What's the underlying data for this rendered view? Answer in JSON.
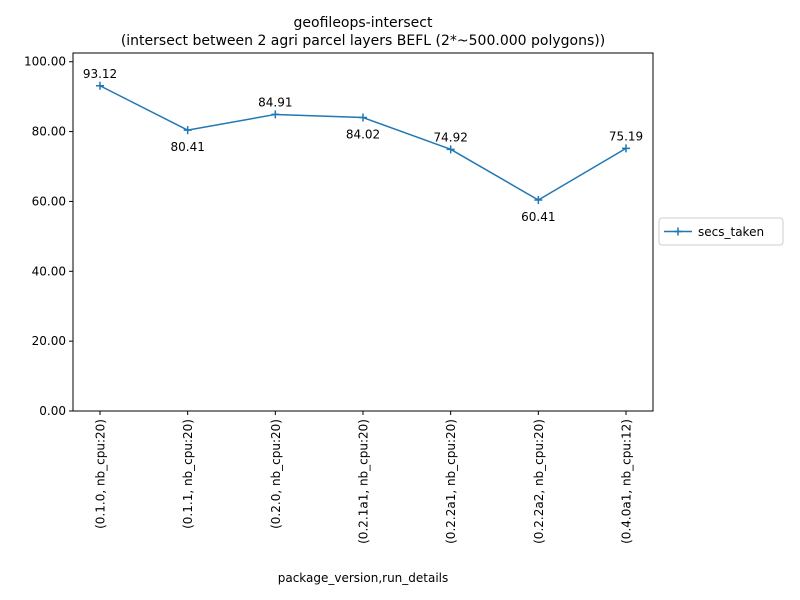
{
  "chart_data": {
    "type": "line",
    "title": "geofileops-intersect",
    "subtitle": "(intersect between 2 agri parcel layers BEFL (2*~500.000 polygons))",
    "xlabel": "package_version,run_details",
    "ylabel": "",
    "categories": [
      "(0.1.0, nb_cpu:20)",
      "(0.1.1, nb_cpu:20)",
      "(0.2.0, nb_cpu:20)",
      "(0.2.1a1, nb_cpu:20)",
      "(0.2.2a1, nb_cpu:20)",
      "(0.2.2a2, nb_cpu:20)",
      "(0.4.0a1, nb_cpu:12)"
    ],
    "series": [
      {
        "name": "secs_taken",
        "values": [
          93.12,
          80.41,
          84.91,
          84.02,
          74.92,
          60.41,
          75.19
        ],
        "labels": [
          "93.12",
          "80.41",
          "84.91",
          "84.02",
          "74.92",
          "60.41",
          "75.19"
        ],
        "label_placement": [
          "above",
          "below",
          "above",
          "below",
          "above",
          "below",
          "above"
        ],
        "color": "#1f77b4",
        "marker": "plus"
      }
    ],
    "ylim": [
      0,
      102.5
    ],
    "yticks": [
      0,
      20,
      40,
      60,
      80,
      100
    ],
    "ytick_labels": [
      "0.00",
      "20.00",
      "40.00",
      "60.00",
      "80.00",
      "100.00"
    ],
    "grid": false,
    "legend": {
      "placement": "right-center-outside",
      "entries": [
        "secs_taken"
      ]
    }
  }
}
